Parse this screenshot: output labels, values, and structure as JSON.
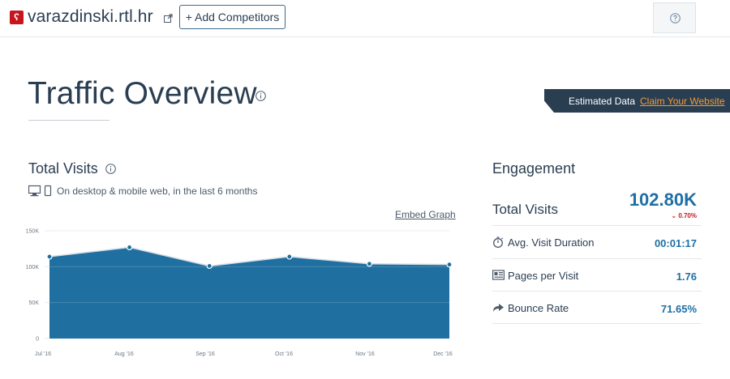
{
  "header": {
    "site_name": "varazdinski.rtl.hr",
    "add_competitors": "+ Add Competitors"
  },
  "page": {
    "title": "Traffic Overview",
    "estimated_label": "Estimated Data",
    "claim_link": "Claim Your Website"
  },
  "total_visits": {
    "title": "Total Visits",
    "subtitle": "On desktop & mobile web, in the last 6 months",
    "embed_link": "Embed Graph"
  },
  "chart_data": {
    "type": "area",
    "categories": [
      "Jul '16",
      "Aug '16",
      "Sep '16",
      "Oct '16",
      "Nov '16",
      "Dec '16"
    ],
    "values": [
      114000,
      127000,
      101000,
      114000,
      104000,
      103000
    ],
    "y_ticks": [
      "0",
      "50K",
      "100K",
      "150K"
    ],
    "y_tick_values": [
      0,
      50000,
      100000,
      150000
    ],
    "ylim": [
      0,
      150000
    ],
    "grid": true,
    "title": "",
    "xlabel": "",
    "ylabel": "",
    "colors": {
      "fill": "#1f6fa0",
      "line": "#ffffff",
      "marker": "#1f6fa0"
    }
  },
  "engagement": {
    "title": "Engagement",
    "total_visits_label": "Total Visits",
    "total_visits_value": "102.80K",
    "total_visits_change": "0.70%",
    "avg_duration_label": "Avg. Visit Duration",
    "avg_duration_value": "00:01:17",
    "pages_label": "Pages per Visit",
    "pages_value": "1.76",
    "bounce_label": "Bounce Rate",
    "bounce_value": "71.65%"
  },
  "icons": {
    "site_logo": "site-logo-icon",
    "external_link": "external-link-icon",
    "help": "help-icon",
    "info": "info-icon",
    "devices": "desktop-mobile-icon",
    "duration": "stopwatch-icon",
    "pages": "pages-icon",
    "bounce": "bounce-arrow-icon"
  },
  "colors": {
    "brand_dark": "#2a3e52",
    "accent_orange": "#f79b2e",
    "value_blue": "#1e6fa5",
    "negative_red": "#c4161c"
  }
}
